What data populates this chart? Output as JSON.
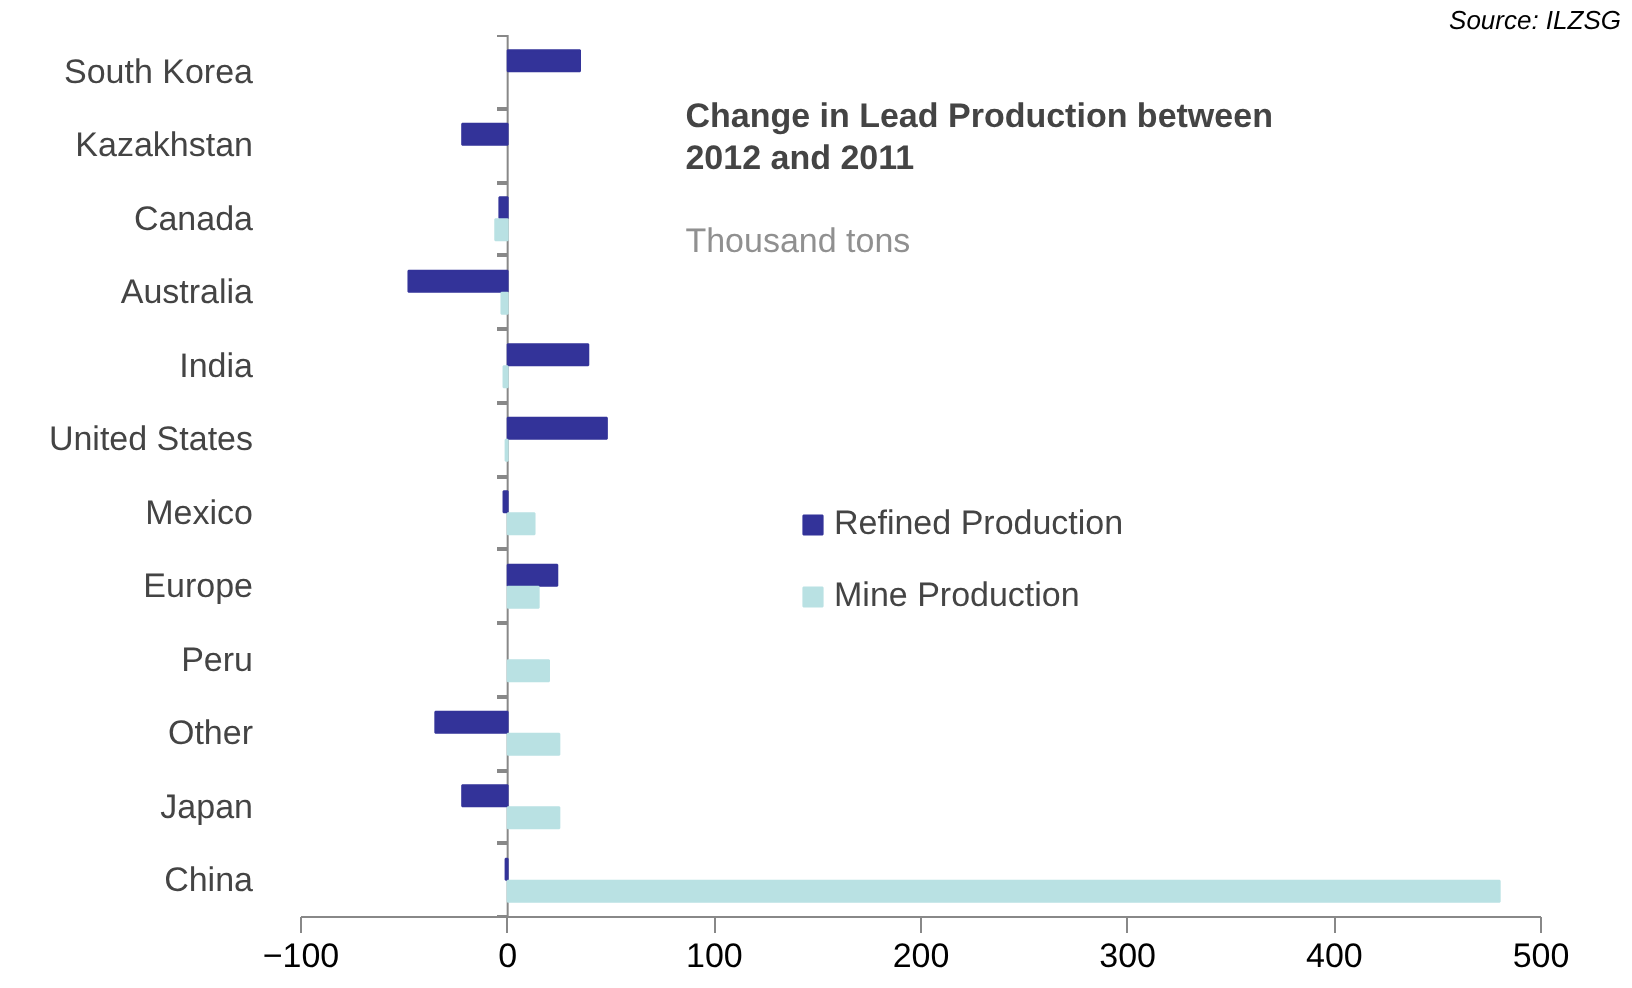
{
  "chart_data": {
    "type": "bar",
    "orientation": "horizontal",
    "title": "Change in Lead Production between\n2012 and 2011",
    "subtitle": "Thousand tons",
    "annotations": [
      "Source: ILZSG"
    ],
    "categories": [
      "South Korea",
      "Kazakhstan",
      "Canada",
      "Australia",
      "India",
      "United States",
      "Mexico",
      "Europe",
      "Peru",
      "Other",
      "Japan",
      "China"
    ],
    "series": [
      {
        "name": "Refined Production",
        "color": "#333399",
        "values": [
          35,
          -22,
          -4,
          -48,
          39,
          48,
          -2,
          24,
          null,
          -35,
          -22,
          -1
        ]
      },
      {
        "name": "Mine Production",
        "color": "#b9e1e3",
        "values": [
          null,
          null,
          -6,
          -3,
          -2,
          -1,
          13,
          15,
          20,
          25,
          25,
          480
        ]
      }
    ],
    "xlim": [
      -100,
      500
    ],
    "xticks": [
      -100,
      0,
      100,
      200,
      300,
      400,
      500
    ],
    "grid": false,
    "legend": "right",
    "ref_lines": [
      {
        "axis": "x",
        "value": 0,
        "color": "#888888"
      }
    ]
  }
}
